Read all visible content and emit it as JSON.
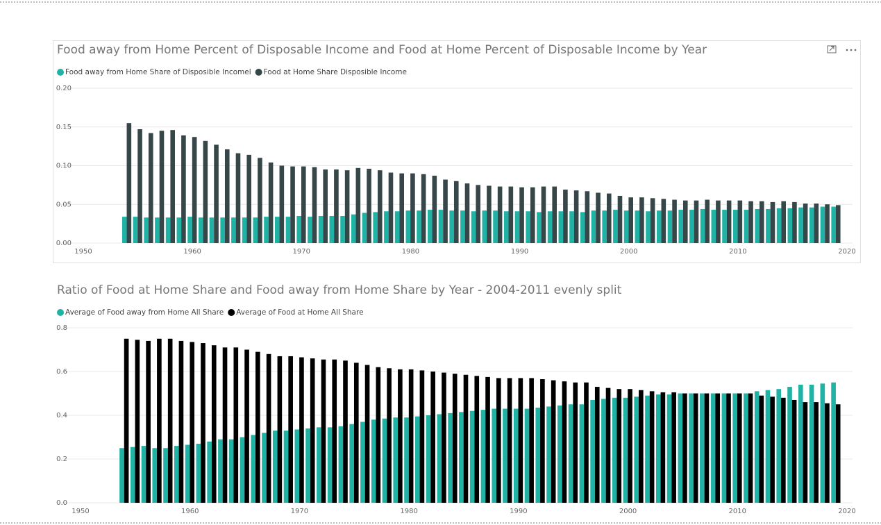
{
  "chart_data": [
    {
      "type": "bar",
      "title": "Food away from Home Percent of Disposable Income and Food at Home Percent of Disposable Income by Year",
      "x": [
        1954,
        1955,
        1956,
        1957,
        1958,
        1959,
        1960,
        1961,
        1962,
        1963,
        1964,
        1965,
        1966,
        1967,
        1968,
        1969,
        1970,
        1971,
        1972,
        1973,
        1974,
        1975,
        1976,
        1977,
        1978,
        1979,
        1980,
        1981,
        1982,
        1983,
        1984,
        1985,
        1986,
        1987,
        1988,
        1989,
        1990,
        1991,
        1992,
        1993,
        1994,
        1995,
        1996,
        1997,
        1998,
        1999,
        2000,
        2001,
        2002,
        2003,
        2004,
        2005,
        2006,
        2007,
        2008,
        2009,
        2010,
        2011,
        2012,
        2013,
        2014,
        2015,
        2016,
        2017,
        2018,
        2019
      ],
      "series": [
        {
          "name": "Food away from Home Share of Disposible Incomel",
          "color": "#20b2a4",
          "values": [
            0.034,
            0.034,
            0.033,
            0.033,
            0.033,
            0.033,
            0.034,
            0.033,
            0.033,
            0.033,
            0.033,
            0.033,
            0.033,
            0.034,
            0.034,
            0.034,
            0.035,
            0.034,
            0.035,
            0.035,
            0.035,
            0.037,
            0.039,
            0.04,
            0.041,
            0.041,
            0.042,
            0.042,
            0.043,
            0.043,
            0.042,
            0.042,
            0.041,
            0.042,
            0.042,
            0.041,
            0.041,
            0.041,
            0.04,
            0.041,
            0.041,
            0.041,
            0.04,
            0.042,
            0.042,
            0.043,
            0.042,
            0.042,
            0.041,
            0.042,
            0.042,
            0.043,
            0.043,
            0.044,
            0.043,
            0.043,
            0.043,
            0.043,
            0.044,
            0.044,
            0.045,
            0.045,
            0.046,
            0.046,
            0.047,
            0.047
          ]
        },
        {
          "name": "Food at Home Share Disposible Income",
          "color": "#374649",
          "values": [
            0.155,
            0.147,
            0.142,
            0.145,
            0.146,
            0.139,
            0.137,
            0.132,
            0.127,
            0.121,
            0.116,
            0.114,
            0.11,
            0.104,
            0.1,
            0.099,
            0.099,
            0.098,
            0.095,
            0.095,
            0.094,
            0.097,
            0.096,
            0.094,
            0.091,
            0.09,
            0.09,
            0.089,
            0.087,
            0.082,
            0.08,
            0.077,
            0.075,
            0.074,
            0.073,
            0.073,
            0.072,
            0.072,
            0.073,
            0.073,
            0.069,
            0.068,
            0.067,
            0.065,
            0.064,
            0.061,
            0.059,
            0.059,
            0.058,
            0.057,
            0.056,
            0.055,
            0.055,
            0.056,
            0.055,
            0.055,
            0.055,
            0.054,
            0.054,
            0.053,
            0.054,
            0.053,
            0.051,
            0.051,
            0.05,
            0.049
          ]
        }
      ],
      "xlim": [
        1950,
        2020
      ],
      "xticks": [
        1950,
        1960,
        1970,
        1980,
        1990,
        2000,
        2010,
        2020
      ],
      "ylim": [
        0,
        0.2
      ],
      "yticks": [
        {
          "value": 0,
          "label": "0.00"
        },
        {
          "value": 0.05,
          "label": "0.05"
        },
        {
          "value": 0.1,
          "label": "0.10"
        },
        {
          "value": 0.15,
          "label": "0.15"
        },
        {
          "value": 0.2,
          "label": "0.20"
        }
      ],
      "grid": true,
      "legend": "top-left"
    },
    {
      "type": "bar",
      "title": "Ratio of Food at Home Share and Food away from Home Share by Year - 2004-2011 evenly split",
      "x": [
        1954,
        1955,
        1956,
        1957,
        1958,
        1959,
        1960,
        1961,
        1962,
        1963,
        1964,
        1965,
        1966,
        1967,
        1968,
        1969,
        1970,
        1971,
        1972,
        1973,
        1974,
        1975,
        1976,
        1977,
        1978,
        1979,
        1980,
        1981,
        1982,
        1983,
        1984,
        1985,
        1986,
        1987,
        1988,
        1989,
        1990,
        1991,
        1992,
        1993,
        1994,
        1995,
        1996,
        1997,
        1998,
        1999,
        2000,
        2001,
        2002,
        2003,
        2004,
        2005,
        2006,
        2007,
        2008,
        2009,
        2010,
        2011,
        2012,
        2013,
        2014,
        2015,
        2016,
        2017,
        2018,
        2019
      ],
      "series": [
        {
          "name": "Average of Food away from Home All Share",
          "color": "#20b2a4",
          "values": [
            0.25,
            0.255,
            0.26,
            0.25,
            0.25,
            0.26,
            0.265,
            0.27,
            0.28,
            0.29,
            0.29,
            0.3,
            0.31,
            0.32,
            0.33,
            0.33,
            0.335,
            0.34,
            0.345,
            0.345,
            0.35,
            0.36,
            0.37,
            0.38,
            0.385,
            0.39,
            0.39,
            0.395,
            0.4,
            0.405,
            0.41,
            0.415,
            0.42,
            0.425,
            0.43,
            0.43,
            0.43,
            0.43,
            0.435,
            0.44,
            0.445,
            0.45,
            0.45,
            0.47,
            0.475,
            0.48,
            0.48,
            0.485,
            0.49,
            0.495,
            0.495,
            0.5,
            0.5,
            0.5,
            0.5,
            0.5,
            0.5,
            0.5,
            0.51,
            0.515,
            0.52,
            0.53,
            0.54,
            0.54,
            0.545,
            0.55
          ]
        },
        {
          "name": "Average of Food at Home All Share",
          "color": "#000000",
          "values": [
            0.75,
            0.745,
            0.74,
            0.75,
            0.75,
            0.74,
            0.735,
            0.73,
            0.72,
            0.71,
            0.71,
            0.7,
            0.69,
            0.68,
            0.67,
            0.67,
            0.665,
            0.66,
            0.655,
            0.655,
            0.65,
            0.64,
            0.63,
            0.62,
            0.615,
            0.61,
            0.61,
            0.605,
            0.6,
            0.595,
            0.59,
            0.585,
            0.58,
            0.575,
            0.57,
            0.57,
            0.57,
            0.57,
            0.565,
            0.56,
            0.555,
            0.55,
            0.55,
            0.53,
            0.525,
            0.52,
            0.52,
            0.515,
            0.51,
            0.505,
            0.505,
            0.5,
            0.5,
            0.5,
            0.5,
            0.5,
            0.5,
            0.5,
            0.49,
            0.485,
            0.48,
            0.47,
            0.46,
            0.46,
            0.455,
            0.45
          ]
        }
      ],
      "xlim": [
        1950,
        2020
      ],
      "xticks": [
        1950,
        1960,
        1970,
        1980,
        1990,
        2000,
        2010,
        2020
      ],
      "ylim": [
        0,
        0.8
      ],
      "yticks": [
        {
          "value": 0,
          "label": "0.0"
        },
        {
          "value": 0.2,
          "label": "0.2"
        },
        {
          "value": 0.4,
          "label": "0.4"
        },
        {
          "value": 0.6,
          "label": "0.6"
        },
        {
          "value": 0.8,
          "label": "0.8"
        }
      ],
      "grid": true,
      "legend": "top-left"
    }
  ]
}
